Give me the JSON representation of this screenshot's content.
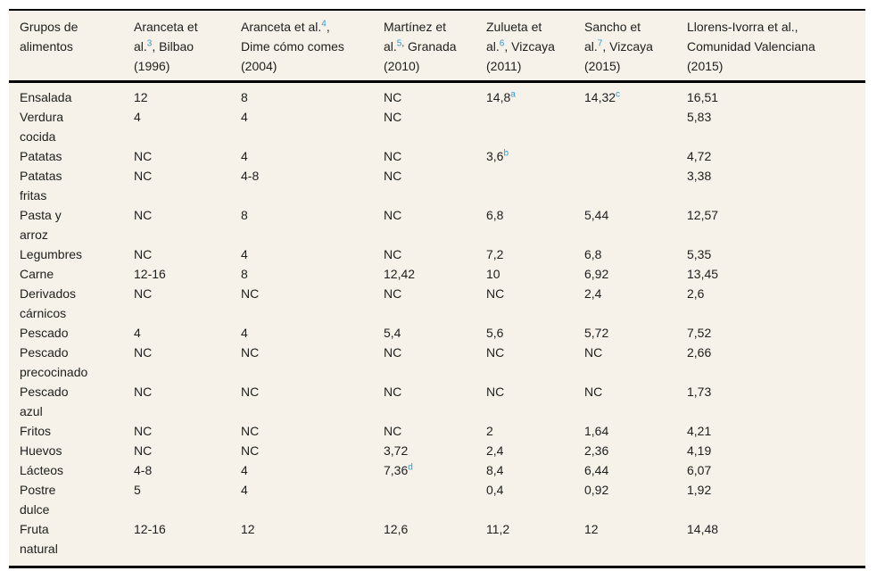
{
  "table": {
    "colors": {
      "background": "#f6f2e9",
      "text": "#1e1e1e",
      "superscript": "#3598ce",
      "rule": "#000000"
    },
    "columns": [
      {
        "text": "Grupos de\nalimentos"
      },
      {
        "pre": "Aranceta et\nal.",
        "sup": "3",
        "rest": ", Bilbao\n(1996)"
      },
      {
        "pre": "Aranceta et al.",
        "sup": "4",
        "rest": ",\nDime cómo comes\n(2004)"
      },
      {
        "pre": "Martínez et\nal.",
        "sup": "5",
        "sup_suffix": ",",
        "rest": " Granada\n(2010)"
      },
      {
        "pre": "Zulueta et\nal.",
        "sup": "6",
        "rest": ", Vizcaya\n(2011)"
      },
      {
        "pre": "Sancho et\nal.",
        "sup": "7",
        "rest": ", Vizcaya\n(2015)"
      },
      {
        "text": "Llorens-Ivorra et al.,\nComunidad Valenciana\n(2015)"
      }
    ],
    "rows": [
      {
        "label": "Ensalada",
        "values": [
          "12",
          "8",
          "NC",
          {
            "v": "14,8",
            "sup": "a"
          },
          {
            "v": "14,32",
            "sup": "c"
          },
          "16,51"
        ]
      },
      {
        "label": "Verdura\ncocida",
        "values": [
          "4",
          "4",
          "NC",
          "",
          "",
          "5,83"
        ]
      },
      {
        "label": "Patatas",
        "values": [
          "NC",
          "4",
          "NC",
          {
            "v": "3,6",
            "sup": "b"
          },
          "",
          "4,72"
        ]
      },
      {
        "label": "Patatas\nfritas",
        "values": [
          "NC",
          "4-8",
          "NC",
          "",
          "",
          "3,38"
        ]
      },
      {
        "label": "Pasta y\narroz",
        "values": [
          "NC",
          "8",
          "NC",
          "6,8",
          "5,44",
          "12,57"
        ]
      },
      {
        "label": "Legumbres",
        "values": [
          "NC",
          "4",
          "NC",
          "7,2",
          "6,8",
          "5,35"
        ]
      },
      {
        "label": "Carne",
        "values": [
          "12-16",
          "8",
          "12,42",
          "10",
          "6,92",
          "13,45"
        ]
      },
      {
        "label": "Derivados\ncárnicos",
        "values": [
          "NC",
          "NC",
          "NC",
          "NC",
          "2,4",
          "2,6"
        ]
      },
      {
        "label": "Pescado",
        "values": [
          "4",
          "4",
          "5,4",
          "5,6",
          "5,72",
          "7,52"
        ]
      },
      {
        "label": "Pescado\nprecocinado",
        "values": [
          "NC",
          "NC",
          "NC",
          "NC",
          "NC",
          "2,66"
        ]
      },
      {
        "label": "Pescado\nazul",
        "values": [
          "NC",
          "NC",
          "NC",
          "NC",
          "NC",
          "1,73"
        ]
      },
      {
        "label": "Fritos",
        "values": [
          "NC",
          "NC",
          "NC",
          "2",
          "1,64",
          "4,21"
        ]
      },
      {
        "label": "Huevos",
        "values": [
          "NC",
          "NC",
          "3,72",
          "2,4",
          "2,36",
          "4,19"
        ]
      },
      {
        "label": "Lácteos",
        "values": [
          "4-8",
          "4",
          {
            "v": "7,36",
            "sup": "d"
          },
          "8,4",
          "6,44",
          "6,07"
        ]
      },
      {
        "label": "Postre\ndulce",
        "values": [
          "5",
          "4",
          "",
          "0,4",
          "0,92",
          "1,92"
        ]
      },
      {
        "label": "Fruta\nnatural",
        "values": [
          "12-16",
          "12",
          "12,6",
          "11,2",
          "12",
          "14,48"
        ]
      }
    ]
  }
}
